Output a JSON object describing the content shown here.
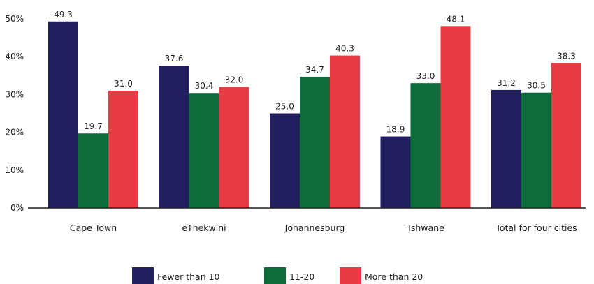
{
  "chart_data": {
    "type": "bar",
    "title": "",
    "xlabel": "",
    "ylabel": "",
    "ylim": [
      0,
      50
    ],
    "y_ticks": [
      "0%",
      "10%",
      "20%",
      "30%",
      "40%",
      "50%"
    ],
    "grid": false,
    "legend_position": "bottom",
    "categories": [
      "Cape Town",
      "eThekwini",
      "Johannesburg",
      "Tshwane",
      "Total for four cities"
    ],
    "series": [
      {
        "name": "Fewer than 10",
        "color": "#221f5e",
        "values": [
          49.3,
          37.6,
          25.0,
          18.9,
          31.2
        ],
        "labels": [
          "49.3",
          "37.6",
          "25.0",
          "18.9",
          "31.2"
        ]
      },
      {
        "name": "11-20",
        "color": "#0d6b3c",
        "values": [
          19.7,
          30.4,
          34.7,
          33.0,
          30.5
        ],
        "labels": [
          "19.7",
          "30.4",
          "34.7",
          "33.0",
          "30.5"
        ]
      },
      {
        "name": "More than 20",
        "color": "#e73c45",
        "values": [
          31.0,
          32.0,
          40.3,
          48.1,
          38.3
        ],
        "labels": [
          "31.0",
          "32.0",
          "40.3",
          "48.1",
          "38.3"
        ]
      }
    ]
  }
}
